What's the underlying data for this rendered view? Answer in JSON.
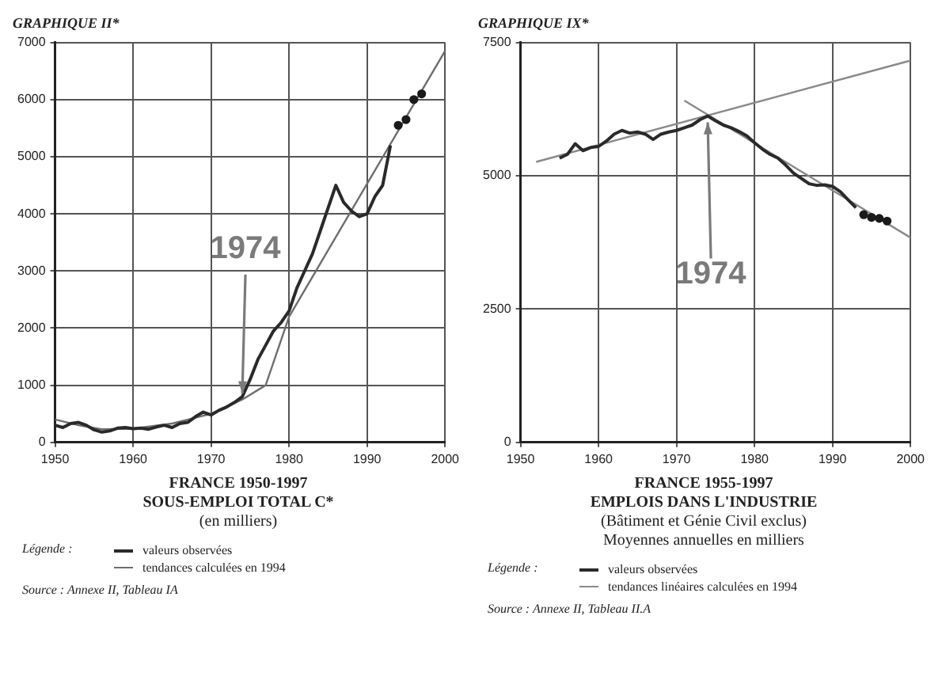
{
  "chart_data": [
    {
      "type": "line",
      "title": "GRAPHIQUE II*",
      "xlim": [
        1950,
        2000
      ],
      "xticks": [
        1950,
        1960,
        1970,
        1980,
        1990,
        2000
      ],
      "ylim": [
        0,
        7000
      ],
      "yticks": [
        0,
        1000,
        2000,
        3000,
        4000,
        5000,
        6000,
        7000
      ],
      "grid": true,
      "legend": "bottom",
      "legend_title": "Légende :",
      "series": [
        {
          "name": "valeurs observées",
          "color": "#2a2a2a",
          "marker": "none",
          "line_style": "solid",
          "x": [
            1950,
            1951,
            1952,
            1953,
            1954,
            1955,
            1956,
            1957,
            1958,
            1959,
            1960,
            1961,
            1962,
            1963,
            1964,
            1965,
            1966,
            1967,
            1968,
            1969,
            1970,
            1971,
            1972,
            1973,
            1974,
            1975,
            1976,
            1977,
            1978,
            1979,
            1980,
            1981,
            1982,
            1983,
            1984,
            1985,
            1986,
            1987,
            1988,
            1989,
            1990,
            1991,
            1992,
            1993
          ],
          "values": [
            300,
            260,
            330,
            350,
            300,
            220,
            180,
            200,
            250,
            260,
            240,
            250,
            230,
            270,
            300,
            260,
            330,
            350,
            450,
            530,
            480,
            560,
            620,
            700,
            800,
            1100,
            1450,
            1700,
            1950,
            2100,
            2300,
            2700,
            3000,
            3300,
            3700,
            4100,
            4500,
            4200,
            4050,
            3950,
            4000,
            4300,
            4500,
            5200
          ]
        },
        {
          "type": "scatter",
          "color": "#1a1a1a",
          "marker": "circle",
          "x": [
            1994,
            1995,
            1996,
            1997
          ],
          "values": [
            5550,
            5650,
            6000,
            6100
          ]
        },
        {
          "name": "tendances calculées en 1994",
          "color": "#6e6e6e",
          "marker": "none",
          "line_style": "solid",
          "x": [
            1950,
            1953,
            1956,
            1960,
            1965,
            1970,
            1974,
            1977,
            1980,
            2000
          ],
          "values": [
            400,
            300,
            230,
            240,
            330,
            500,
            750,
            1000,
            2200,
            6850
          ]
        }
      ],
      "annotations": [
        "FRANCE 1950-1997",
        "SOUS-EMPLOI TOTAL C*",
        "(en milliers)",
        {
          "text": "1974",
          "x": 1974,
          "y": 750
        },
        "Source : Annexe II, Tableau IA"
      ]
    },
    {
      "type": "line",
      "title": "GRAPHIQUE IX*",
      "xlim": [
        1950,
        2000
      ],
      "xticks": [
        1950,
        1960,
        1970,
        1980,
        1990,
        2000
      ],
      "ylim": [
        0,
        7500
      ],
      "yticks": [
        0,
        2500,
        5000,
        7500
      ],
      "grid": true,
      "legend": "bottom",
      "legend_title": "Légende :",
      "series": [
        {
          "name": "valeurs observées",
          "color": "#2a2a2a",
          "marker": "none",
          "line_style": "solid",
          "x": [
            1955,
            1956,
            1957,
            1958,
            1959,
            1960,
            1961,
            1962,
            1963,
            1964,
            1965,
            1966,
            1967,
            1968,
            1969,
            1970,
            1971,
            1972,
            1973,
            1974,
            1975,
            1976,
            1977,
            1978,
            1979,
            1980,
            1981,
            1982,
            1983,
            1984,
            1985,
            1986,
            1987,
            1988,
            1989,
            1990,
            1991,
            1992,
            1993
          ],
          "values": [
            5330,
            5400,
            5600,
            5470,
            5530,
            5550,
            5650,
            5780,
            5850,
            5800,
            5820,
            5780,
            5680,
            5780,
            5820,
            5850,
            5900,
            5950,
            6050,
            6120,
            6030,
            5950,
            5900,
            5830,
            5750,
            5620,
            5500,
            5400,
            5330,
            5200,
            5050,
            4950,
            4850,
            4820,
            4830,
            4800,
            4700,
            4550,
            4400
          ]
        },
        {
          "type": "scatter",
          "color": "#1a1a1a",
          "marker": "circle",
          "x": [
            1994,
            1995,
            1996,
            1997
          ],
          "values": [
            4270,
            4220,
            4200,
            4150
          ]
        },
        {
          "name": "tendances linéaires calculées en 1994",
          "color": "#8a8a8a",
          "marker": "none",
          "line_style": "solid",
          "x": [
            1952,
            2000
          ],
          "values": [
            5260,
            7160
          ]
        },
        {
          "color": "#8a8a8a",
          "marker": "none",
          "line_style": "solid",
          "x": [
            1971,
            2000
          ],
          "values": [
            6410,
            3840
          ]
        }
      ],
      "annotations": [
        "FRANCE 1955-1997",
        "EMPLOIS DANS L'INDUSTRIE",
        "(Bâtiment et Génie Civil exclus)",
        "Moyennes annuelles en milliers",
        {
          "text": "1974",
          "x": 1974,
          "y": 6120
        },
        "Source : Annexe II, Tableau II.A"
      ]
    }
  ]
}
